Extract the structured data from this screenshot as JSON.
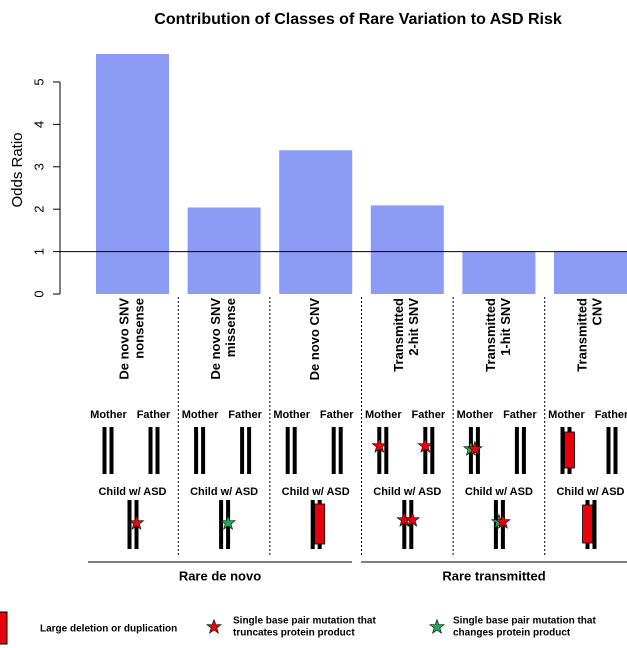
{
  "chart_data": {
    "type": "bar",
    "title": "Contribution of Classes of Rare Variation to ASD Risk",
    "y_label": "Odds Ratio",
    "categories": [
      [
        "De novo SNV",
        "nonsense"
      ],
      [
        "De novo SNV",
        "missense"
      ],
      [
        "De novo CNV"
      ],
      [
        "Transmitted",
        "2-hit SNV"
      ],
      [
        "Transmitted",
        "1-hit SNV"
      ],
      [
        "Transmitted",
        "CNV"
      ]
    ],
    "values": [
      5.66,
      2.04,
      3.39,
      2.09,
      0.99,
      0.99
    ],
    "color": "#8c9cf5",
    "ylim": [
      0,
      5.7
    ],
    "yticks": [
      0,
      1,
      2,
      3,
      4,
      5
    ],
    "reference_line": 1,
    "groups": [
      "Rare de novo",
      "Rare transmitted"
    ],
    "diagram_labels": {
      "mother": "Mother",
      "father": "Father",
      "child": "Child w/ ASD"
    },
    "legend": [
      [
        "Large deletion or duplication"
      ],
      [
        "Single base pair mutation that",
        "truncates protein product"
      ],
      [
        "Single base pair mutation that",
        "changes protein product"
      ]
    ]
  }
}
